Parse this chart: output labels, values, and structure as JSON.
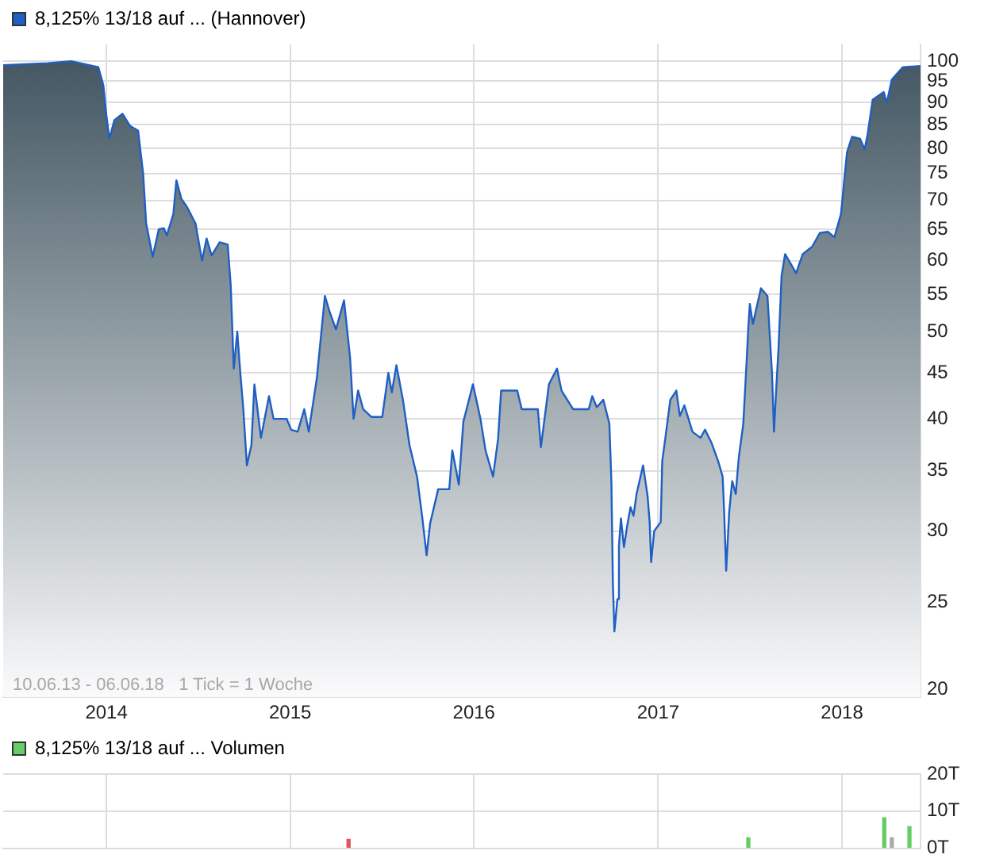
{
  "chart_data": [
    {
      "type": "area",
      "log": "y",
      "legend": "top left",
      "grid": true,
      "annotations": [
        "10.06.13 - 06.06.18   1 Tick = 1 Woche"
      ],
      "xlim": [
        "2013-06-10",
        "2018-06-06"
      ],
      "xticks": [
        {
          "value": "2014-01-01",
          "label": "2014"
        },
        {
          "value": "2015-01-01",
          "label": "2015"
        },
        {
          "value": "2016-01-01",
          "label": "2016"
        },
        {
          "value": "2017-01-01",
          "label": "2017"
        },
        {
          "value": "2018-01-01",
          "label": "2018"
        }
      ],
      "ylim": [
        19.6,
        104.4
      ],
      "yticks": [
        20,
        25,
        30,
        35,
        40,
        45,
        50,
        55,
        60,
        65,
        70,
        75,
        80,
        85,
        90,
        95,
        100
      ],
      "series": [
        {
          "name": "8,125% 13/18 auf ... (Hannover)",
          "color": "#1f5fc4",
          "x": [
            "2013-06-10",
            "2013-09-06",
            "2013-10-23",
            "2013-12-16",
            "2013-12-26",
            "2014-01-01",
            "2014-01-07",
            "2014-01-17",
            "2014-02-02",
            "2014-02-17",
            "2014-03-05",
            "2014-03-15",
            "2014-03-21",
            "2014-04-03",
            "2014-04-15",
            "2014-04-25",
            "2014-05-01",
            "2014-05-14",
            "2014-05-20",
            "2014-05-30",
            "2014-06-11",
            "2014-06-27",
            "2014-07-10",
            "2014-07-19",
            "2014-07-29",
            "2014-08-14",
            "2014-08-30",
            "2014-09-05",
            "2014-09-11",
            "2014-09-18",
            "2014-09-24",
            "2014-09-30",
            "2014-10-07",
            "2014-10-16",
            "2014-10-22",
            "2014-11-04",
            "2014-11-20",
            "2014-11-29",
            "2014-12-25",
            "2015-01-03",
            "2015-01-16",
            "2015-01-29",
            "2015-02-07",
            "2015-02-23",
            "2015-03-11",
            "2015-03-20",
            "2015-04-02",
            "2015-04-18",
            "2015-04-30",
            "2015-05-07",
            "2015-05-16",
            "2015-05-26",
            "2015-06-11",
            "2015-07-03",
            "2015-07-15",
            "2015-07-22",
            "2015-07-31",
            "2015-08-13",
            "2015-08-26",
            "2015-09-10",
            "2015-09-20",
            "2015-09-29",
            "2015-10-06",
            "2015-10-22",
            "2015-11-13",
            "2015-11-19",
            "2015-12-02",
            "2015-12-11",
            "2015-12-30",
            "2016-01-14",
            "2016-01-24",
            "2016-02-08",
            "2016-02-18",
            "2016-02-24",
            "2016-03-11",
            "2016-03-27",
            "2016-04-05",
            "2016-05-07",
            "2016-05-13",
            "2016-05-29",
            "2016-06-14",
            "2016-06-23",
            "2016-07-16",
            "2016-08-16",
            "2016-08-23",
            "2016-09-01",
            "2016-09-14",
            "2016-09-26",
            "2016-09-30",
            "2016-10-03",
            "2016-10-06",
            "2016-10-12",
            "2016-10-15",
            "2016-10-19",
            "2016-10-25",
            "2016-10-31",
            "2016-11-07",
            "2016-11-13",
            "2016-11-19",
            "2016-12-02",
            "2016-12-11",
            "2016-12-15",
            "2016-12-18",
            "2016-12-24",
            "2017-01-06",
            "2017-01-09",
            "2017-01-15",
            "2017-01-25",
            "2017-02-06",
            "2017-02-13",
            "2017-02-22",
            "2017-03-10",
            "2017-03-26",
            "2017-04-04",
            "2017-04-17",
            "2017-04-30",
            "2017-05-09",
            "2017-05-12",
            "2017-05-16",
            "2017-05-22",
            "2017-05-28",
            "2017-06-04",
            "2017-06-10",
            "2017-06-19",
            "2017-06-26",
            "2017-06-29",
            "2017-07-02",
            "2017-07-08",
            "2017-07-24",
            "2017-08-06",
            "2017-08-15",
            "2017-08-19",
            "2017-08-22",
            "2017-08-28",
            "2017-09-03",
            "2017-09-10",
            "2017-10-02",
            "2017-10-15",
            "2017-11-03",
            "2017-11-18",
            "2017-12-04",
            "2017-12-17",
            "2017-12-30",
            "2018-01-05",
            "2018-01-11",
            "2018-01-21",
            "2018-02-06",
            "2018-02-15",
            "2018-02-21",
            "2018-03-03",
            "2018-03-25",
            "2018-03-31",
            "2018-04-10",
            "2018-05-02",
            "2018-06-06"
          ],
          "values": [
            99,
            99.5,
            100,
            98.5,
            94,
            87,
            82,
            86,
            87.4,
            84.7,
            83.7,
            75,
            66,
            60.6,
            65,
            65.2,
            64,
            67.6,
            73.7,
            70.3,
            68.7,
            66,
            60,
            63.5,
            60.8,
            62.9,
            62.5,
            56.3,
            45.5,
            50,
            45,
            41,
            35.5,
            37.4,
            43.7,
            38.1,
            42.4,
            40,
            40,
            38.9,
            38.7,
            41,
            38.7,
            44.4,
            54.8,
            52.7,
            50.3,
            54.2,
            46.8,
            40,
            43,
            41,
            40.2,
            40.2,
            45,
            42.8,
            45.9,
            42,
            37.4,
            34.5,
            31.2,
            28.2,
            30.6,
            33.4,
            33.4,
            36.9,
            33.8,
            39.7,
            43.7,
            40,
            36.9,
            34.5,
            38,
            43,
            43,
            43,
            41,
            41,
            37.2,
            43.7,
            45.5,
            43,
            41,
            41,
            42.4,
            41.2,
            42,
            39.5,
            34.1,
            26.2,
            23.2,
            25.2,
            28.9,
            31,
            28.8,
            30.3,
            31.9,
            31.2,
            33,
            35.5,
            32.8,
            30.7,
            27.7,
            30,
            30.7,
            35.9,
            38,
            42,
            43,
            40.3,
            41.4,
            38.7,
            38.1,
            38.9,
            37.6,
            35.9,
            34.5,
            31.5,
            27.1,
            31.5,
            34.1,
            33,
            36.2,
            39.5,
            46.8,
            50.6,
            53.7,
            51,
            55.9,
            54.8,
            45,
            38.7,
            41.8,
            48,
            57.7,
            61,
            58.1,
            61,
            62.2,
            64.4,
            64.6,
            63.7,
            67.6,
            73.2,
            79.2,
            82.4,
            82,
            79.8,
            83,
            90.6,
            92.4,
            89.9,
            95.4,
            98.5,
            98.8
          ]
        }
      ]
    },
    {
      "type": "bar",
      "legend": "top left",
      "grid": true,
      "tick_labels": "y",
      "xlim": [
        "2013-06-10",
        "2018-06-06"
      ],
      "xticks": [
        {
          "value": "2014-01-01",
          "label": null
        },
        {
          "value": "2015-01-01",
          "label": null
        },
        {
          "value": "2016-01-01",
          "label": null
        },
        {
          "value": "2017-01-01",
          "label": null
        },
        {
          "value": "2018-01-01",
          "label": null
        }
      ],
      "ylim": [
        0,
        20
      ],
      "yticks": [
        {
          "value": 0,
          "label": "0T"
        },
        {
          "value": 10,
          "label": "10T"
        },
        {
          "value": 20,
          "label": "20T"
        }
      ],
      "series": [
        {
          "name": "8,125% 13/18 auf ... Volumen",
          "color": "#66cc66",
          "x": [
            "2015-04-27",
            "2017-06-29",
            "2018-03-26",
            "2018-04-10",
            "2018-05-15"
          ],
          "values": [
            2.4,
            2.8,
            8.2,
            2.8,
            5.8
          ],
          "colors": [
            "#e05555",
            "#66cc66",
            "#66cc66",
            "#aaaaaa",
            "#66cc66"
          ]
        }
      ]
    }
  ]
}
